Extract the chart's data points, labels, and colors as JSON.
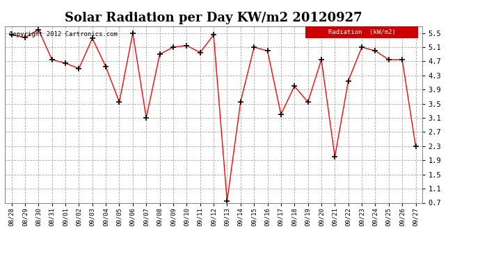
{
  "title": "Solar Radiation per Day KW/m2 20120927",
  "copyright": "Copyright 2012 Cartronics.com",
  "legend_label": "Radiation  (kW/m2)",
  "dates": [
    "08/28",
    "08/29",
    "08/30",
    "08/31",
    "09/01",
    "09/02",
    "09/03",
    "09/04",
    "09/05",
    "09/06",
    "09/07",
    "09/08",
    "09/09",
    "09/10",
    "09/11",
    "09/12",
    "09/13",
    "09/14",
    "09/15",
    "09/16",
    "09/17",
    "09/18",
    "09/19",
    "09/20",
    "09/21",
    "09/22",
    "09/23",
    "09/24",
    "09/25",
    "09/26",
    "09/27"
  ],
  "values": [
    5.45,
    5.38,
    5.6,
    4.75,
    4.65,
    4.5,
    5.35,
    4.55,
    3.55,
    5.5,
    3.1,
    4.9,
    5.1,
    5.15,
    4.95,
    5.45,
    0.75,
    3.55,
    5.1,
    5.0,
    3.2,
    4.0,
    3.55,
    4.75,
    2.0,
    4.15,
    5.1,
    5.0,
    4.75,
    4.75,
    2.3
  ],
  "ylim": [
    0.7,
    5.7
  ],
  "yticks": [
    0.7,
    1.1,
    1.5,
    1.9,
    2.3,
    2.7,
    3.1,
    3.5,
    3.9,
    4.3,
    4.7,
    5.1,
    5.5
  ],
  "line_color": "red",
  "marker": "+",
  "marker_color": "black",
  "bg_color": "#ffffff",
  "plot_bg_color": "#ffffff",
  "grid_color": "#aaaaaa",
  "title_fontsize": 13,
  "legend_bg": "#cc0000",
  "legend_text_color": "#ffffff",
  "figure_width": 6.9,
  "figure_height": 3.75,
  "dpi": 100
}
